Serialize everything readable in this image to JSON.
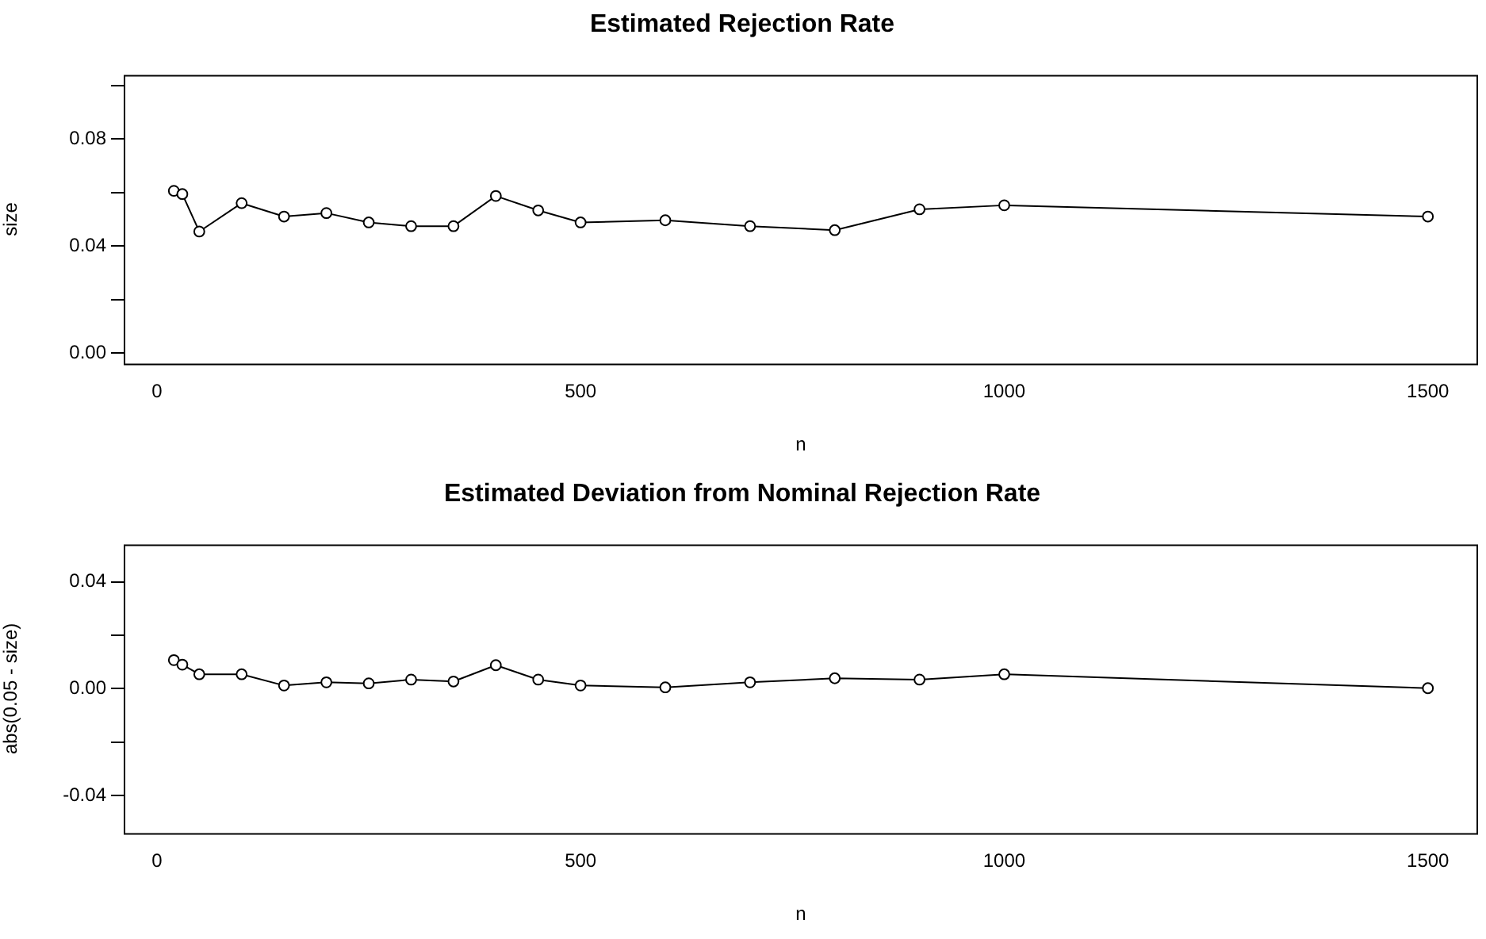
{
  "chart_data": [
    {
      "type": "line",
      "title": "Estimated Rejection Rate",
      "xlabel": "n",
      "ylabel": "size",
      "marker": "circle",
      "line_style": "solid",
      "x": [
        20,
        30,
        50,
        100,
        150,
        200,
        250,
        300,
        350,
        400,
        450,
        500,
        600,
        700,
        800,
        900,
        1000,
        1500
      ],
      "xlim": [
        -39.2,
        1559.2
      ],
      "xticks": [
        0,
        500,
        1000,
        1500
      ],
      "ylim": [
        -0.004,
        0.104
      ],
      "yticks": [
        {
          "value": 0,
          "label": "0.00"
        },
        {
          "value": 0.02,
          "label": null
        },
        0.04,
        {
          "value": 0.06,
          "label": null
        },
        0.08,
        {
          "value": 0.1,
          "label": null
        }
      ],
      "series": [
        {
          "color": "#000000",
          "values": [
            0.0606,
            0.0594,
            0.0454,
            0.056,
            0.051,
            0.0523,
            0.0488,
            0.0474,
            0.0474,
            0.0587,
            0.0533,
            0.0488,
            0.0496,
            0.0474,
            0.0459,
            0.0537,
            0.0552,
            0.051
          ]
        }
      ]
    },
    {
      "type": "line",
      "title": "Estimated Deviation from Nominal Rejection Rate",
      "xlabel": "n",
      "ylabel": "abs(0.05 - size)",
      "marker": "circle",
      "line_style": "solid",
      "x": [
        20,
        30,
        50,
        100,
        150,
        200,
        250,
        300,
        350,
        400,
        450,
        500,
        600,
        700,
        800,
        900,
        1000,
        1500
      ],
      "xlim": [
        -39.2,
        1559.2
      ],
      "xticks": [
        0,
        500,
        1000,
        1500
      ],
      "ylim": [
        -0.054,
        0.054
      ],
      "yticks": [
        -0.04,
        {
          "value": -0.02,
          "label": null
        },
        {
          "value": 0,
          "label": "0.00"
        },
        {
          "value": 0.02,
          "label": null
        },
        0.04
      ],
      "series": [
        {
          "color": "#000000",
          "values": [
            0.0107,
            0.009,
            0.0054,
            0.0054,
            0.0012,
            0.0024,
            0.002,
            0.0034,
            0.0027,
            0.0088,
            0.0034,
            0.0012,
            0.0005,
            0.0024,
            0.0039,
            0.0034,
            0.0054,
            0.0002
          ]
        }
      ]
    }
  ]
}
